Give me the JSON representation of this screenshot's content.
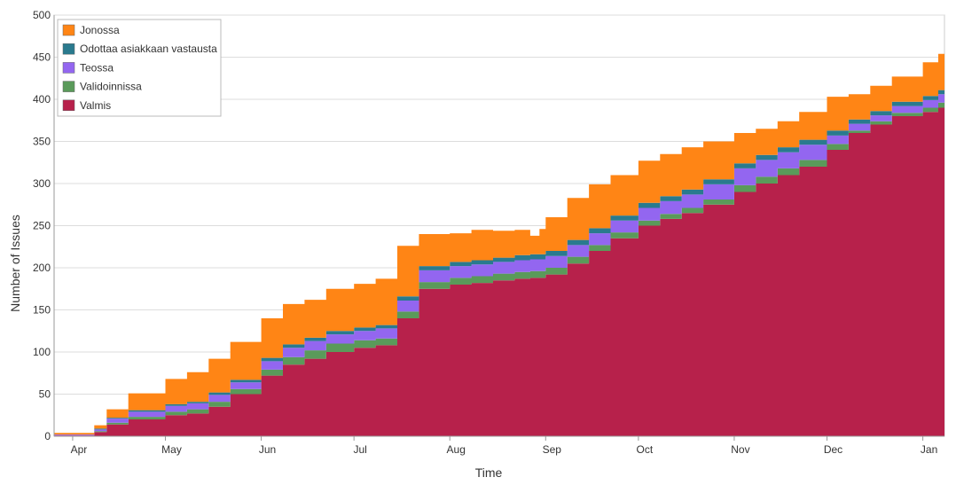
{
  "chart_data": {
    "type": "area",
    "stacked": true,
    "title": "",
    "xlabel": "Time",
    "ylabel": "Number of Issues",
    "ylim": [
      0,
      500
    ],
    "y_ticks": [
      0,
      50,
      100,
      150,
      200,
      250,
      300,
      350,
      400,
      450,
      500
    ],
    "x_ticks": [
      "Apr",
      "May",
      "Jun",
      "Jul",
      "Aug",
      "Sep",
      "Oct",
      "Nov",
      "Dec",
      "Jan"
    ],
    "x_tick_dates": [
      "2019-04-01",
      "2019-05-01",
      "2019-06-01",
      "2019-07-01",
      "2019-08-01",
      "2019-09-01",
      "2019-10-01",
      "2019-11-01",
      "2019-12-01",
      "2020-01-01"
    ],
    "grid": "horizontal",
    "legend_position": "top-left",
    "x": [
      "2019-03-26",
      "2019-04-08",
      "2019-04-12",
      "2019-04-19",
      "2019-05-01",
      "2019-05-08",
      "2019-05-15",
      "2019-05-22",
      "2019-06-01",
      "2019-06-08",
      "2019-06-15",
      "2019-06-22",
      "2019-07-01",
      "2019-07-08",
      "2019-07-15",
      "2019-07-22",
      "2019-08-01",
      "2019-08-08",
      "2019-08-15",
      "2019-08-22",
      "2019-08-27",
      "2019-08-30",
      "2019-09-01",
      "2019-09-08",
      "2019-09-15",
      "2019-09-22",
      "2019-10-01",
      "2019-10-08",
      "2019-10-15",
      "2019-10-22",
      "2019-11-01",
      "2019-11-08",
      "2019-11-15",
      "2019-11-22",
      "2019-12-01",
      "2019-12-08",
      "2019-12-15",
      "2019-12-22",
      "2020-01-01",
      "2020-01-06"
    ],
    "series": [
      {
        "name": "Valmis",
        "color": "#b7214b",
        "values": [
          1,
          5,
          14,
          20,
          25,
          27,
          35,
          50,
          72,
          85,
          92,
          100,
          105,
          108,
          140,
          175,
          180,
          182,
          185,
          187,
          188,
          188,
          192,
          205,
          220,
          235,
          250,
          258,
          265,
          275,
          290,
          300,
          310,
          320,
          340,
          360,
          370,
          380,
          385,
          390
        ]
      },
      {
        "name": "Validoinnissa",
        "color": "#5a9a5a",
        "values": [
          0,
          1,
          2,
          3,
          4,
          5,
          6,
          6,
          7,
          9,
          10,
          10,
          9,
          8,
          8,
          8,
          8,
          8,
          8,
          8,
          8,
          8,
          8,
          8,
          7,
          7,
          6,
          6,
          6,
          6,
          8,
          8,
          8,
          8,
          7,
          3,
          4,
          4,
          5,
          6
        ]
      },
      {
        "name": "Teossa",
        "color": "#9366f0",
        "values": [
          1,
          2,
          5,
          6,
          7,
          7,
          8,
          8,
          10,
          11,
          11,
          11,
          11,
          12,
          13,
          14,
          14,
          14,
          14,
          14,
          14,
          14,
          14,
          14,
          14,
          14,
          15,
          15,
          16,
          18,
          20,
          20,
          19,
          18,
          10,
          8,
          7,
          8,
          9,
          10
        ]
      },
      {
        "name": "Odottaa asiakkaan vastausta",
        "color": "#2a7a8e",
        "values": [
          0,
          1,
          1,
          2,
          2,
          2,
          3,
          3,
          4,
          4,
          4,
          4,
          4,
          4,
          5,
          5,
          5,
          5,
          5,
          6,
          6,
          6,
          6,
          6,
          6,
          6,
          6,
          6,
          6,
          6,
          6,
          6,
          6,
          6,
          6,
          5,
          5,
          5,
          5,
          5
        ]
      },
      {
        "name": "Jonossa",
        "color": "#ff8515",
        "values": [
          2,
          4,
          10,
          20,
          30,
          35,
          40,
          45,
          47,
          48,
          45,
          50,
          52,
          55,
          60,
          38,
          34,
          36,
          32,
          30,
          22,
          30,
          40,
          50,
          52,
          48,
          50,
          50,
          50,
          45,
          36,
          31,
          31,
          33,
          40,
          30,
          30,
          30,
          40,
          43
        ]
      }
    ]
  }
}
